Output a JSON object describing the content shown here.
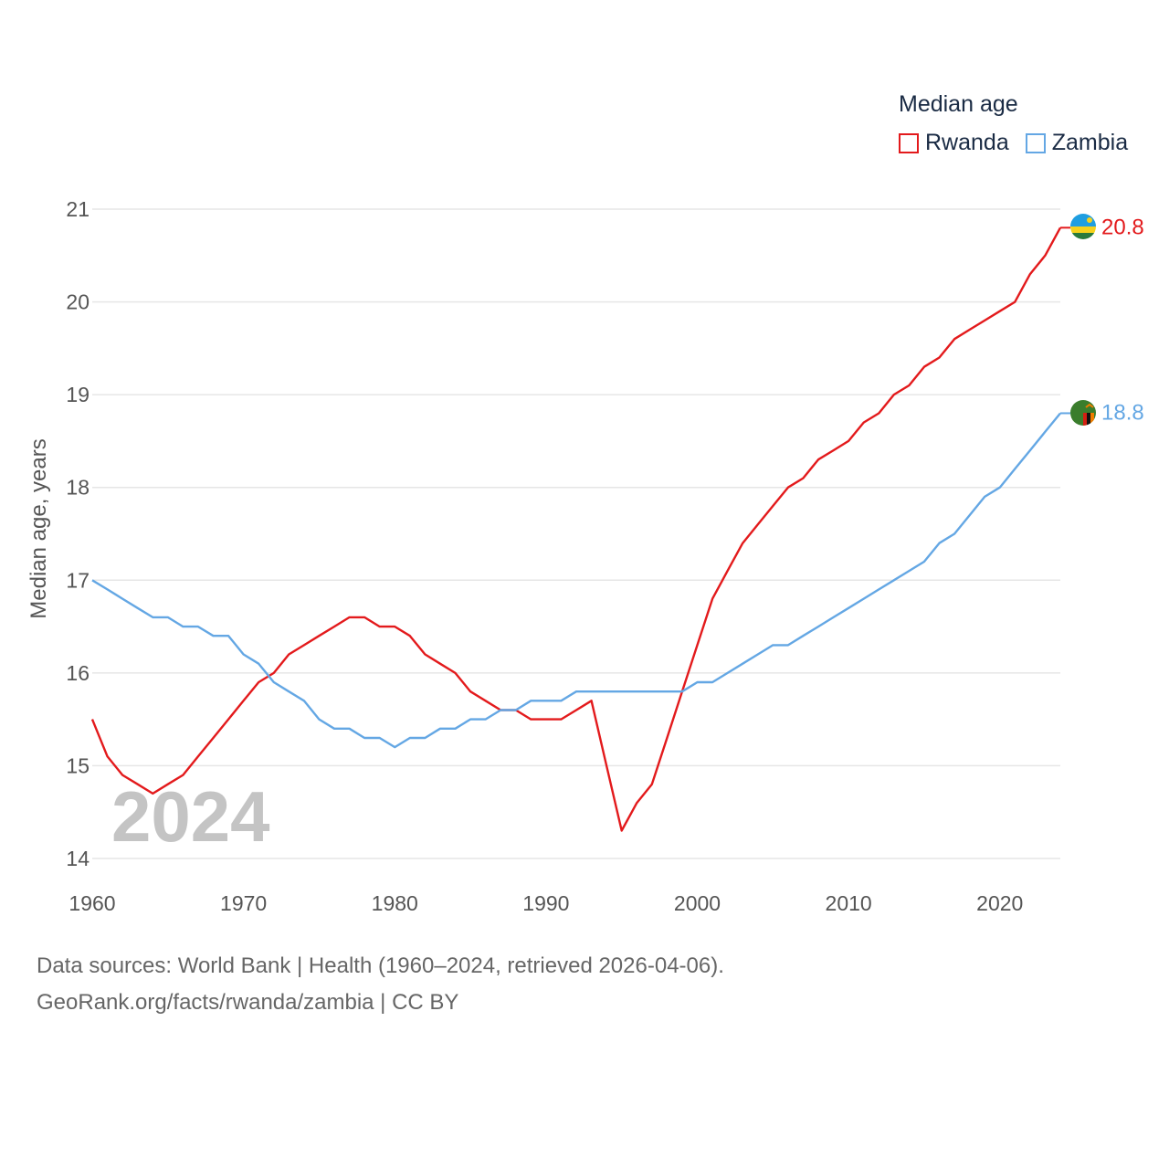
{
  "chart_data": {
    "type": "line",
    "legend_title": "Median age",
    "ylabel": "Median age, years",
    "xlabel": "",
    "year_label": "2024",
    "x_ticks": [
      1960,
      1970,
      1980,
      1990,
      2000,
      2010,
      2020
    ],
    "y_ticks": [
      14,
      15,
      16,
      17,
      18,
      19,
      20,
      21
    ],
    "xlim": [
      1960,
      2024
    ],
    "ylim": [
      14,
      21
    ],
    "x": [
      1960,
      1961,
      1962,
      1963,
      1964,
      1965,
      1966,
      1967,
      1968,
      1969,
      1970,
      1971,
      1972,
      1973,
      1974,
      1975,
      1976,
      1977,
      1978,
      1979,
      1980,
      1981,
      1982,
      1983,
      1984,
      1985,
      1986,
      1987,
      1988,
      1989,
      1990,
      1991,
      1992,
      1993,
      1994,
      1995,
      1996,
      1997,
      1998,
      1999,
      2000,
      2001,
      2002,
      2003,
      2004,
      2005,
      2006,
      2007,
      2008,
      2009,
      2010,
      2011,
      2012,
      2013,
      2014,
      2015,
      2016,
      2017,
      2018,
      2019,
      2020,
      2021,
      2022,
      2023,
      2024
    ],
    "series": [
      {
        "name": "Rwanda",
        "color": "#e31a1c",
        "end_label": "20.8",
        "values": [
          15.5,
          15.1,
          14.9,
          14.8,
          14.7,
          14.8,
          14.9,
          15.1,
          15.3,
          15.5,
          15.7,
          15.9,
          16.0,
          16.2,
          16.3,
          16.4,
          16.5,
          16.6,
          16.6,
          16.5,
          16.5,
          16.4,
          16.2,
          16.1,
          16.0,
          15.8,
          15.7,
          15.6,
          15.6,
          15.5,
          15.5,
          15.5,
          15.6,
          15.7,
          15.0,
          14.3,
          14.6,
          14.8,
          15.3,
          15.8,
          16.3,
          16.8,
          17.1,
          17.4,
          17.6,
          17.8,
          18.0,
          18.1,
          18.3,
          18.4,
          18.5,
          18.7,
          18.8,
          19.0,
          19.1,
          19.3,
          19.4,
          19.6,
          19.7,
          19.8,
          19.9,
          20.0,
          20.3,
          20.5,
          20.8
        ]
      },
      {
        "name": "Zambia",
        "color": "#64a7e4",
        "end_label": "18.8",
        "values": [
          17.0,
          16.9,
          16.8,
          16.7,
          16.6,
          16.6,
          16.5,
          16.5,
          16.4,
          16.4,
          16.2,
          16.1,
          15.9,
          15.8,
          15.7,
          15.5,
          15.4,
          15.4,
          15.3,
          15.3,
          15.2,
          15.3,
          15.3,
          15.4,
          15.4,
          15.5,
          15.5,
          15.6,
          15.6,
          15.7,
          15.7,
          15.7,
          15.8,
          15.8,
          15.8,
          15.8,
          15.8,
          15.8,
          15.8,
          15.8,
          15.9,
          15.9,
          16.0,
          16.1,
          16.2,
          16.3,
          16.3,
          16.4,
          16.5,
          16.6,
          16.7,
          16.8,
          16.9,
          17.0,
          17.1,
          17.2,
          17.4,
          17.5,
          17.7,
          17.9,
          18.0,
          18.2,
          18.4,
          18.6,
          18.8
        ]
      }
    ]
  },
  "footer": {
    "sources": "Data sources: World Bank | Health (1960–2024, retrieved 2026-04-06).",
    "credit": "GeoRank.org/facts/rwanda/zambia | CC BY"
  }
}
